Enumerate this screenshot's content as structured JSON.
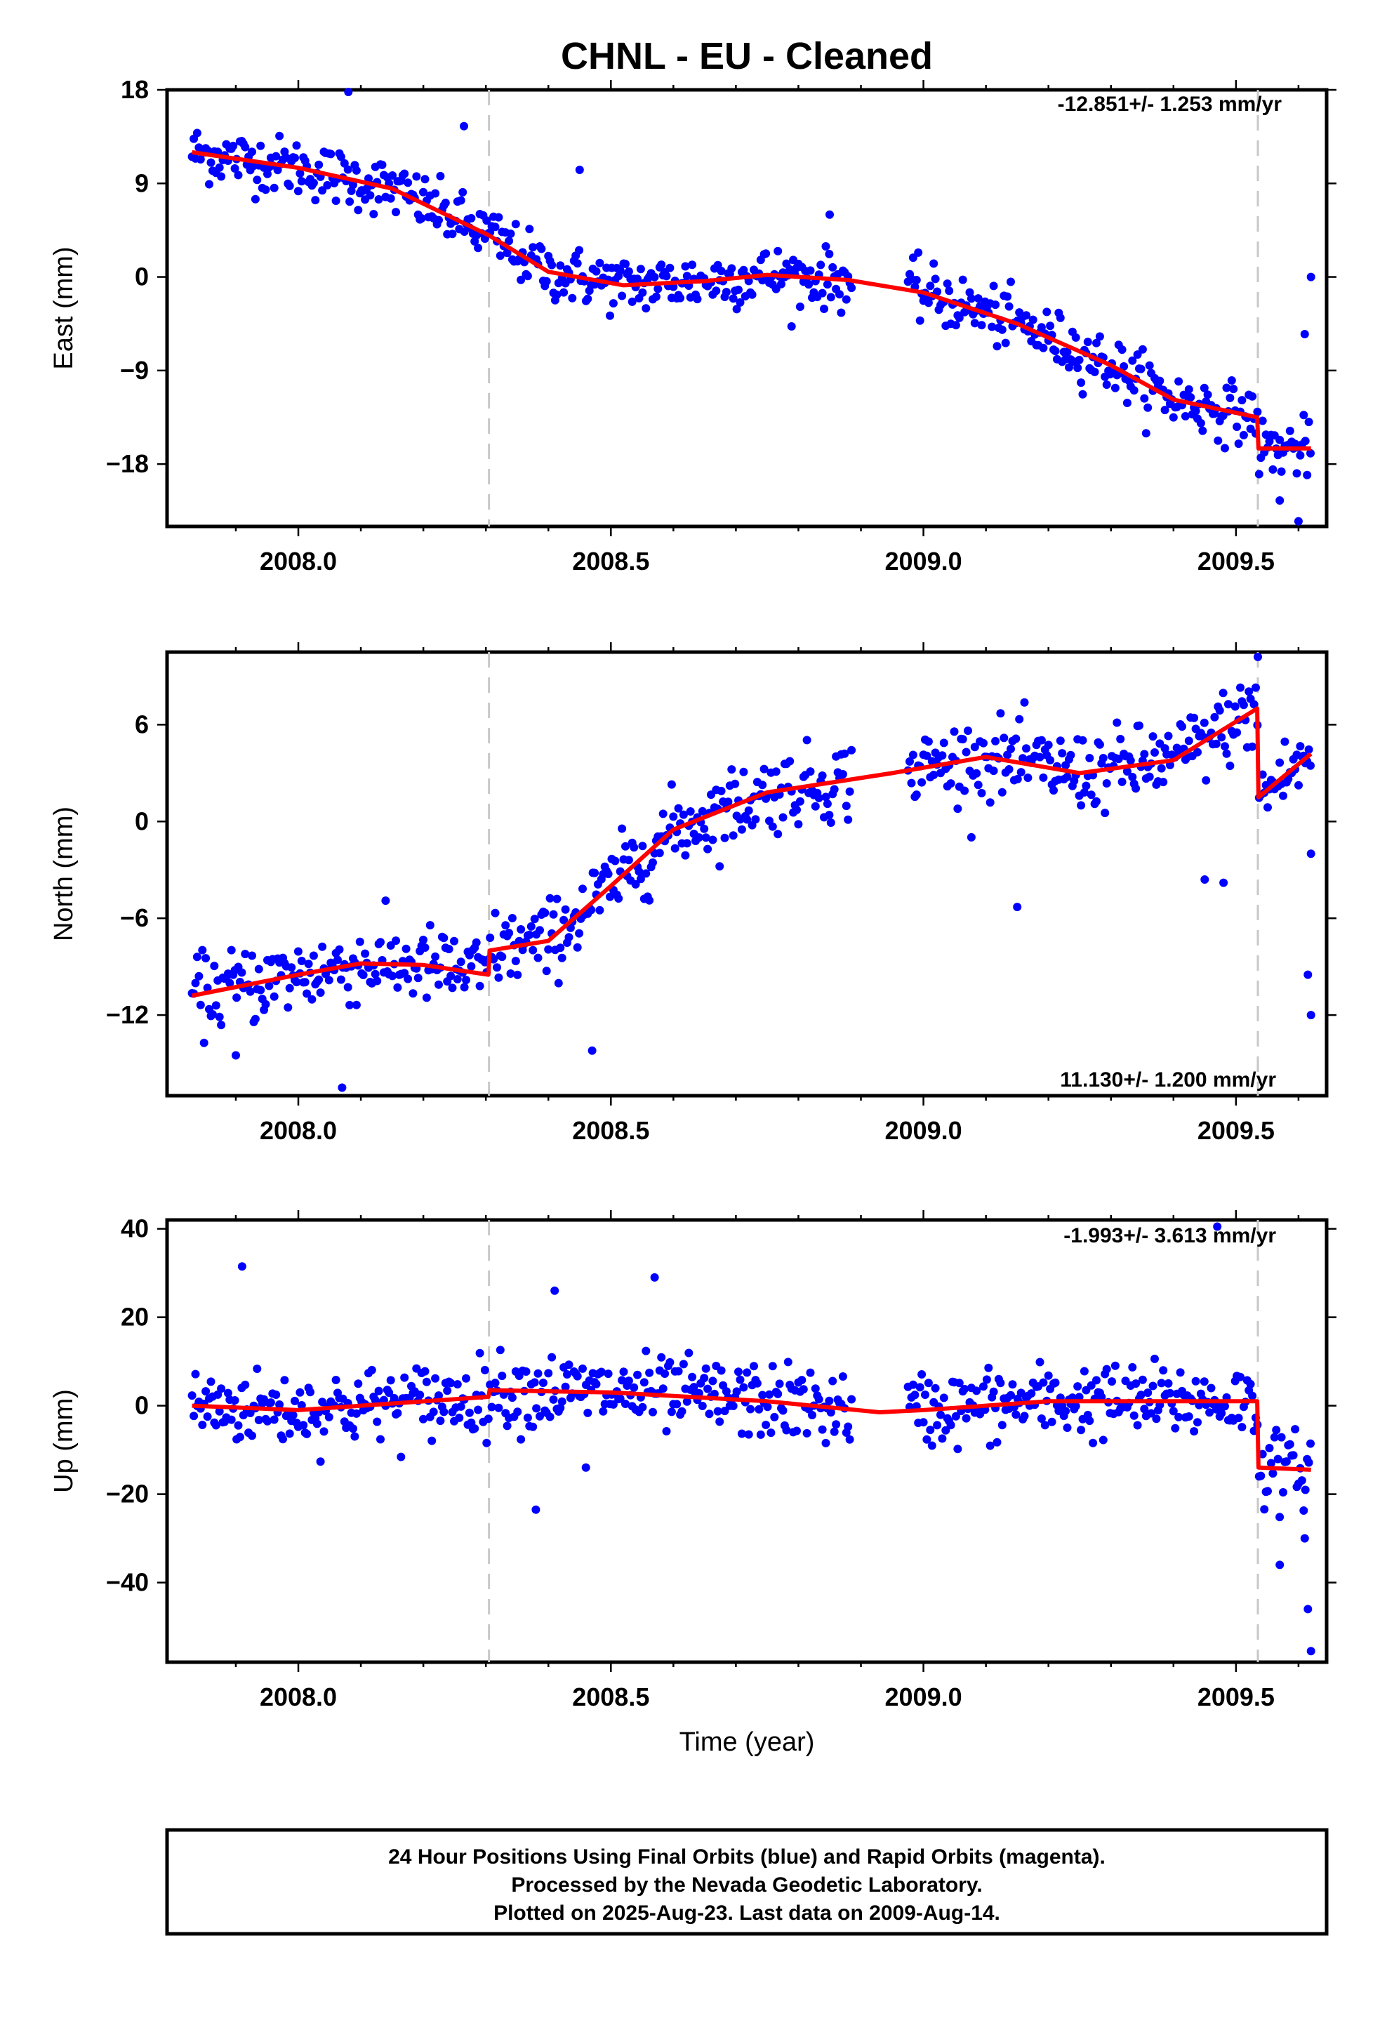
{
  "title": "CHNL  - EU - Cleaned",
  "footer": {
    "line1": "24 Hour Positions Using Final Orbits (blue) and Rapid Orbits (magenta).",
    "line2": "Processed by the Nevada Geodetic Laboratory.",
    "line3": "Plotted on 2025-Aug-23. Last data on 2009-Aug-14."
  },
  "colors": {
    "final_orbits": "#0000ff",
    "model": "#ff0000",
    "offset_lines": "#c8c8c8"
  },
  "chart_data": [
    {
      "type": "scatter",
      "component": "east",
      "ylabel": "East (mm)",
      "xlabel": "",
      "xlim": [
        2007.79,
        2009.645
      ],
      "ylim": [
        -24,
        18
      ],
      "xticks": [
        "2008.0",
        "2008.5",
        "2009.0",
        "2009.5"
      ],
      "yticks": [
        "18",
        "9",
        "0",
        "−9",
        "−18"
      ],
      "ytick_values": [
        18,
        9,
        0,
        -9,
        -18
      ],
      "rate_label": "-12.851+/- 1.253 mm/yr",
      "offsets": [
        2008.305,
        2009.535
      ],
      "model_nodes": [
        [
          2007.83,
          12.0
        ],
        [
          2008.0,
          10.5
        ],
        [
          2008.15,
          8.5
        ],
        [
          2008.305,
          4.0
        ],
        [
          2008.4,
          0.5
        ],
        [
          2008.52,
          -0.8
        ],
        [
          2008.65,
          -0.4
        ],
        [
          2008.75,
          0.2
        ],
        [
          2008.88,
          -0.3
        ],
        [
          2009.0,
          -1.5
        ],
        [
          2009.15,
          -4.5
        ],
        [
          2009.3,
          -8.5
        ],
        [
          2009.4,
          -11.8
        ],
        [
          2009.534,
          -13.5
        ],
        [
          2009.536,
          -16.5
        ],
        [
          2009.62,
          -16.5
        ]
      ],
      "noise": 2.3,
      "outliers": [
        [
          2008.08,
          17.8
        ],
        [
          2008.265,
          14.5
        ],
        [
          2008.45,
          10.3
        ],
        [
          2008.85,
          6.0
        ],
        [
          2009.57,
          -21.5
        ],
        [
          2009.6,
          -23.5
        ],
        [
          2009.62,
          0.0
        ],
        [
          2009.61,
          -5.5
        ]
      ]
    },
    {
      "type": "scatter",
      "component": "north",
      "ylabel": "North (mm)",
      "xlabel": "",
      "xlim": [
        2007.79,
        2009.645
      ],
      "ylim": [
        -17,
        10.5
      ],
      "xticks": [
        "2008.0",
        "2008.5",
        "2009.0",
        "2009.5"
      ],
      "yticks": [
        "6",
        "0",
        "−6",
        "−12"
      ],
      "ytick_values": [
        6,
        0,
        -6,
        -12
      ],
      "rate_label": "11.130+/- 1.200 mm/yr",
      "offsets": [
        2008.305,
        2009.535
      ],
      "model_nodes": [
        [
          2007.83,
          -10.8
        ],
        [
          2008.0,
          -9.5
        ],
        [
          2008.1,
          -8.8
        ],
        [
          2008.2,
          -8.9
        ],
        [
          2008.304,
          -9.5
        ],
        [
          2008.306,
          -8.0
        ],
        [
          2008.4,
          -7.4
        ],
        [
          2008.5,
          -4.0
        ],
        [
          2008.6,
          -0.5
        ],
        [
          2008.75,
          1.8
        ],
        [
          2008.95,
          3.0
        ],
        [
          2009.1,
          4.0
        ],
        [
          2009.25,
          3.0
        ],
        [
          2009.4,
          3.8
        ],
        [
          2009.534,
          7.0
        ],
        [
          2009.536,
          1.5
        ],
        [
          2009.62,
          4.2
        ]
      ],
      "noise": 2.0,
      "outliers": [
        [
          2007.9,
          -14.5
        ],
        [
          2008.07,
          -16.5
        ],
        [
          2008.47,
          -14.2
        ],
        [
          2009.15,
          -5.3
        ],
        [
          2009.45,
          -3.6
        ],
        [
          2009.48,
          -3.8
        ],
        [
          2009.535,
          10.2
        ],
        [
          2009.62,
          -12.0
        ],
        [
          2009.615,
          -9.5
        ],
        [
          2009.62,
          -2.0
        ]
      ]
    },
    {
      "type": "scatter",
      "component": "up",
      "ylabel": "Up (mm)",
      "xlabel": "Time (year)",
      "xlim": [
        2007.79,
        2009.645
      ],
      "ylim": [
        -58,
        42
      ],
      "xticks": [
        "2008.0",
        "2008.5",
        "2009.0",
        "2009.5"
      ],
      "yticks": [
        "40",
        "20",
        "0",
        "−20",
        "−40"
      ],
      "ytick_values": [
        40,
        20,
        0,
        -20,
        -40
      ],
      "rate_label": "-1.993+/- 3.613 mm/yr",
      "offsets": [
        2008.305,
        2009.535
      ],
      "model_nodes": [
        [
          2007.83,
          0.0
        ],
        [
          2008.0,
          -1.0
        ],
        [
          2008.15,
          0.5
        ],
        [
          2008.304,
          2.0
        ],
        [
          2008.306,
          3.5
        ],
        [
          2008.5,
          3.0
        ],
        [
          2008.75,
          1.0
        ],
        [
          2008.93,
          -1.5
        ],
        [
          2009.0,
          -1.0
        ],
        [
          2009.2,
          1.0
        ],
        [
          2009.4,
          1.0
        ],
        [
          2009.534,
          1.0
        ],
        [
          2009.536,
          -14.0
        ],
        [
          2009.62,
          -14.5
        ]
      ],
      "noise": 7.0,
      "outliers": [
        [
          2007.91,
          31.5
        ],
        [
          2008.38,
          -23.5
        ],
        [
          2008.41,
          26.0
        ],
        [
          2008.57,
          29.0
        ],
        [
          2008.46,
          -14.0
        ],
        [
          2009.47,
          40.5
        ],
        [
          2009.57,
          -36.0
        ],
        [
          2009.61,
          -30.0
        ],
        [
          2009.615,
          -46.0
        ],
        [
          2009.62,
          -55.5
        ]
      ]
    }
  ]
}
